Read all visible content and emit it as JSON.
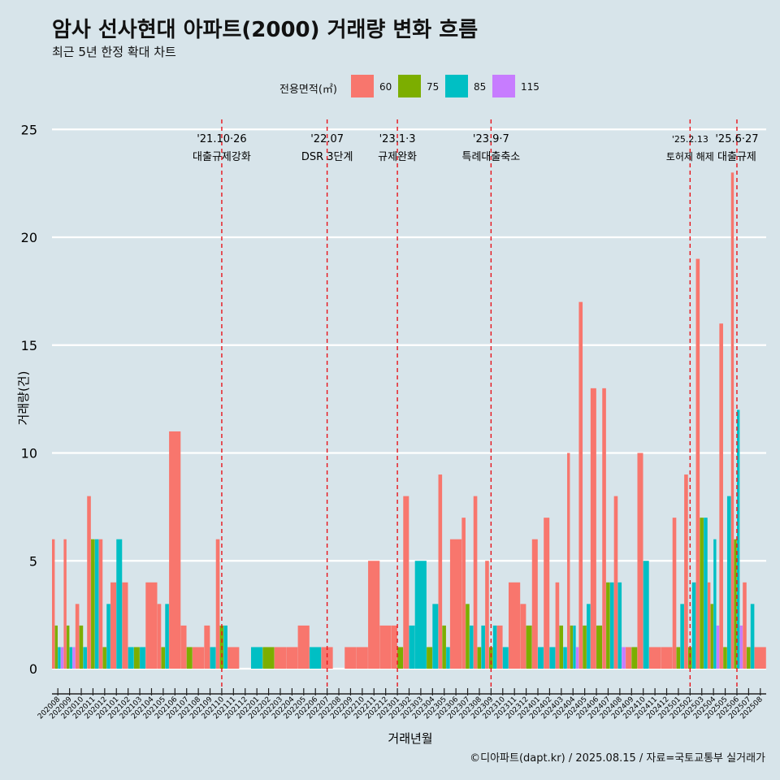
{
  "title": "암사 선사현대 아파트(2000) 거래량 변화 흐름",
  "subtitle": "최근 5년 한정 확대 차트",
  "caption": "©디아파트(dapt.kr) / 2025.08.15 / 자료=국토교통부 실거래가",
  "legend": {
    "title": "전용면적(㎡)",
    "items": [
      {
        "label": "60",
        "color": "#f8766d"
      },
      {
        "label": "75",
        "color": "#7cae00"
      },
      {
        "label": "85",
        "color": "#00bfc4"
      },
      {
        "label": "115",
        "color": "#c77cff"
      }
    ]
  },
  "chart_data": {
    "type": "bar",
    "title": "암사 선사현대 아파트(2000) 거래량 변화 흐름",
    "subtitle": "최근 5년 한정 확대 차트",
    "xlabel": "거래년월",
    "ylabel": "거래량(건)",
    "ylim": [
      0,
      25
    ],
    "yticks": [
      0,
      5,
      10,
      15,
      20,
      25
    ],
    "grid": true,
    "legend_position": "top",
    "categories": [
      "202008",
      "202009",
      "202010",
      "202011",
      "202012",
      "202101",
      "202102",
      "202103",
      "202104",
      "202105",
      "202106",
      "202107",
      "202108",
      "202109",
      "202110",
      "202111",
      "202112",
      "202201",
      "202202",
      "202203",
      "202204",
      "202205",
      "202206",
      "202207",
      "202208",
      "202209",
      "202210",
      "202211",
      "202212",
      "202301",
      "202302",
      "202303",
      "202304",
      "202305",
      "202306",
      "202307",
      "202308",
      "202309",
      "202310",
      "202311",
      "202312",
      "202401",
      "202402",
      "202403",
      "202404",
      "202405",
      "202406",
      "202407",
      "202408",
      "202409",
      "202410",
      "202411",
      "202412",
      "202501",
      "202502",
      "202503",
      "202504",
      "202505",
      "202506",
      "202507",
      "202508"
    ],
    "series": [
      {
        "name": "60",
        "values": [
          6,
          6,
          3,
          8,
          6,
          4,
          4,
          0,
          4,
          3,
          11,
          2,
          1,
          2,
          6,
          1,
          0,
          0,
          0,
          1,
          1,
          2,
          0,
          1,
          0,
          1,
          1,
          5,
          2,
          2,
          8,
          0,
          0,
          9,
          6,
          7,
          8,
          5,
          2,
          4,
          3,
          6,
          7,
          4,
          10,
          17,
          13,
          13,
          8,
          1,
          10,
          1,
          1,
          7,
          9,
          19,
          4,
          16,
          23,
          4,
          1
        ]
      },
      {
        "name": "75",
        "values": [
          2,
          2,
          2,
          6,
          1,
          0,
          0,
          1,
          0,
          1,
          0,
          1,
          0,
          0,
          2,
          0,
          0,
          0,
          1,
          0,
          0,
          0,
          0,
          0,
          0,
          0,
          0,
          0,
          0,
          1,
          0,
          0,
          1,
          2,
          0,
          3,
          1,
          1,
          0,
          0,
          2,
          0,
          0,
          2,
          2,
          2,
          2,
          4,
          0,
          1,
          0,
          0,
          0,
          1,
          1,
          7,
          3,
          1,
          6,
          1,
          0
        ]
      },
      {
        "name": "85",
        "values": [
          1,
          1,
          1,
          6,
          3,
          6,
          1,
          1,
          0,
          3,
          0,
          0,
          0,
          1,
          2,
          0,
          0,
          1,
          0,
          0,
          0,
          0,
          1,
          0,
          0,
          0,
          0,
          0,
          0,
          0,
          2,
          5,
          3,
          1,
          0,
          2,
          2,
          2,
          1,
          0,
          0,
          1,
          1,
          1,
          2,
          3,
          0,
          4,
          4,
          0,
          5,
          0,
          0,
          3,
          4,
          7,
          6,
          8,
          12,
          3,
          0
        ]
      },
      {
        "name": "115",
        "values": [
          1,
          1,
          0,
          0,
          0,
          0,
          0,
          0,
          0,
          0,
          0,
          0,
          0,
          0,
          0,
          0,
          0,
          0,
          0,
          0,
          0,
          0,
          0,
          0,
          0,
          0,
          0,
          0,
          0,
          0,
          0,
          0,
          0,
          0,
          0,
          0,
          0,
          0,
          0,
          0,
          0,
          0,
          0,
          0,
          1,
          0,
          0,
          0,
          1,
          0,
          0,
          0,
          0,
          0,
          0,
          0,
          2,
          0,
          2,
          0,
          0
        ]
      }
    ],
    "annotations": [
      {
        "x": "202110",
        "label_top": "'21.10·26",
        "label_bottom": "대출규제강화"
      },
      {
        "x": "202207",
        "label_top": "'22.07",
        "label_bottom": "DSR 3단계"
      },
      {
        "x": "202301",
        "label_top": "'23.1·3",
        "label_bottom": "규제완화"
      },
      {
        "x": "202309",
        "label_top": "'23.9·7",
        "label_bottom": "특례대출축소"
      },
      {
        "x": "202502",
        "label_top": "'25.2.13",
        "label_bottom": "토허제 해제"
      },
      {
        "x": "202506",
        "label_top": "'25.6·27",
        "label_bottom": "대출규제"
      }
    ]
  }
}
